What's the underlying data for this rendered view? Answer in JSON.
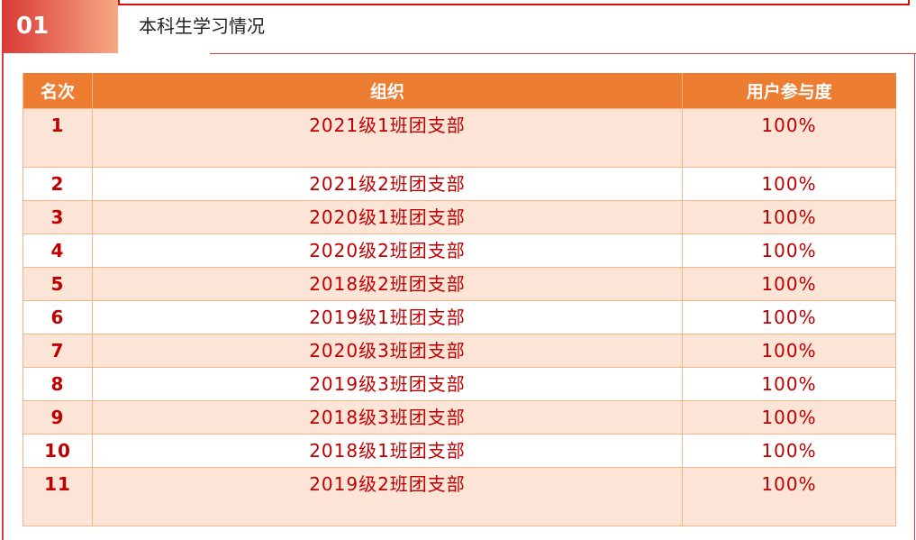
{
  "section": {
    "number": "01",
    "title": "本科生学习情况"
  },
  "table": {
    "headers": [
      "名次",
      "组织",
      "用户参与度"
    ],
    "rows": [
      [
        "1",
        "2021级1班团支部",
        "100%"
      ],
      [
        "2",
        "2021级2班团支部",
        "100%"
      ],
      [
        "3",
        "2020级1班团支部",
        "100%"
      ],
      [
        "4",
        "2020级2班团支部",
        "100%"
      ],
      [
        "5",
        "2018级2班团支部",
        "100%"
      ],
      [
        "6",
        "2019级1班团支部",
        "100%"
      ],
      [
        "7",
        "2020级3班团支部",
        "100%"
      ],
      [
        "8",
        "2019级3班团支部",
        "100%"
      ],
      [
        "9",
        "2018级3班团支部",
        "100%"
      ],
      [
        "10",
        "2018级1班团支部",
        "100%"
      ],
      [
        "11",
        "2019级2班团支部",
        "100%"
      ]
    ]
  },
  "colors": {
    "header": "#ed7d31",
    "accent": "#c00000",
    "stripe": "#fce4d6"
  }
}
